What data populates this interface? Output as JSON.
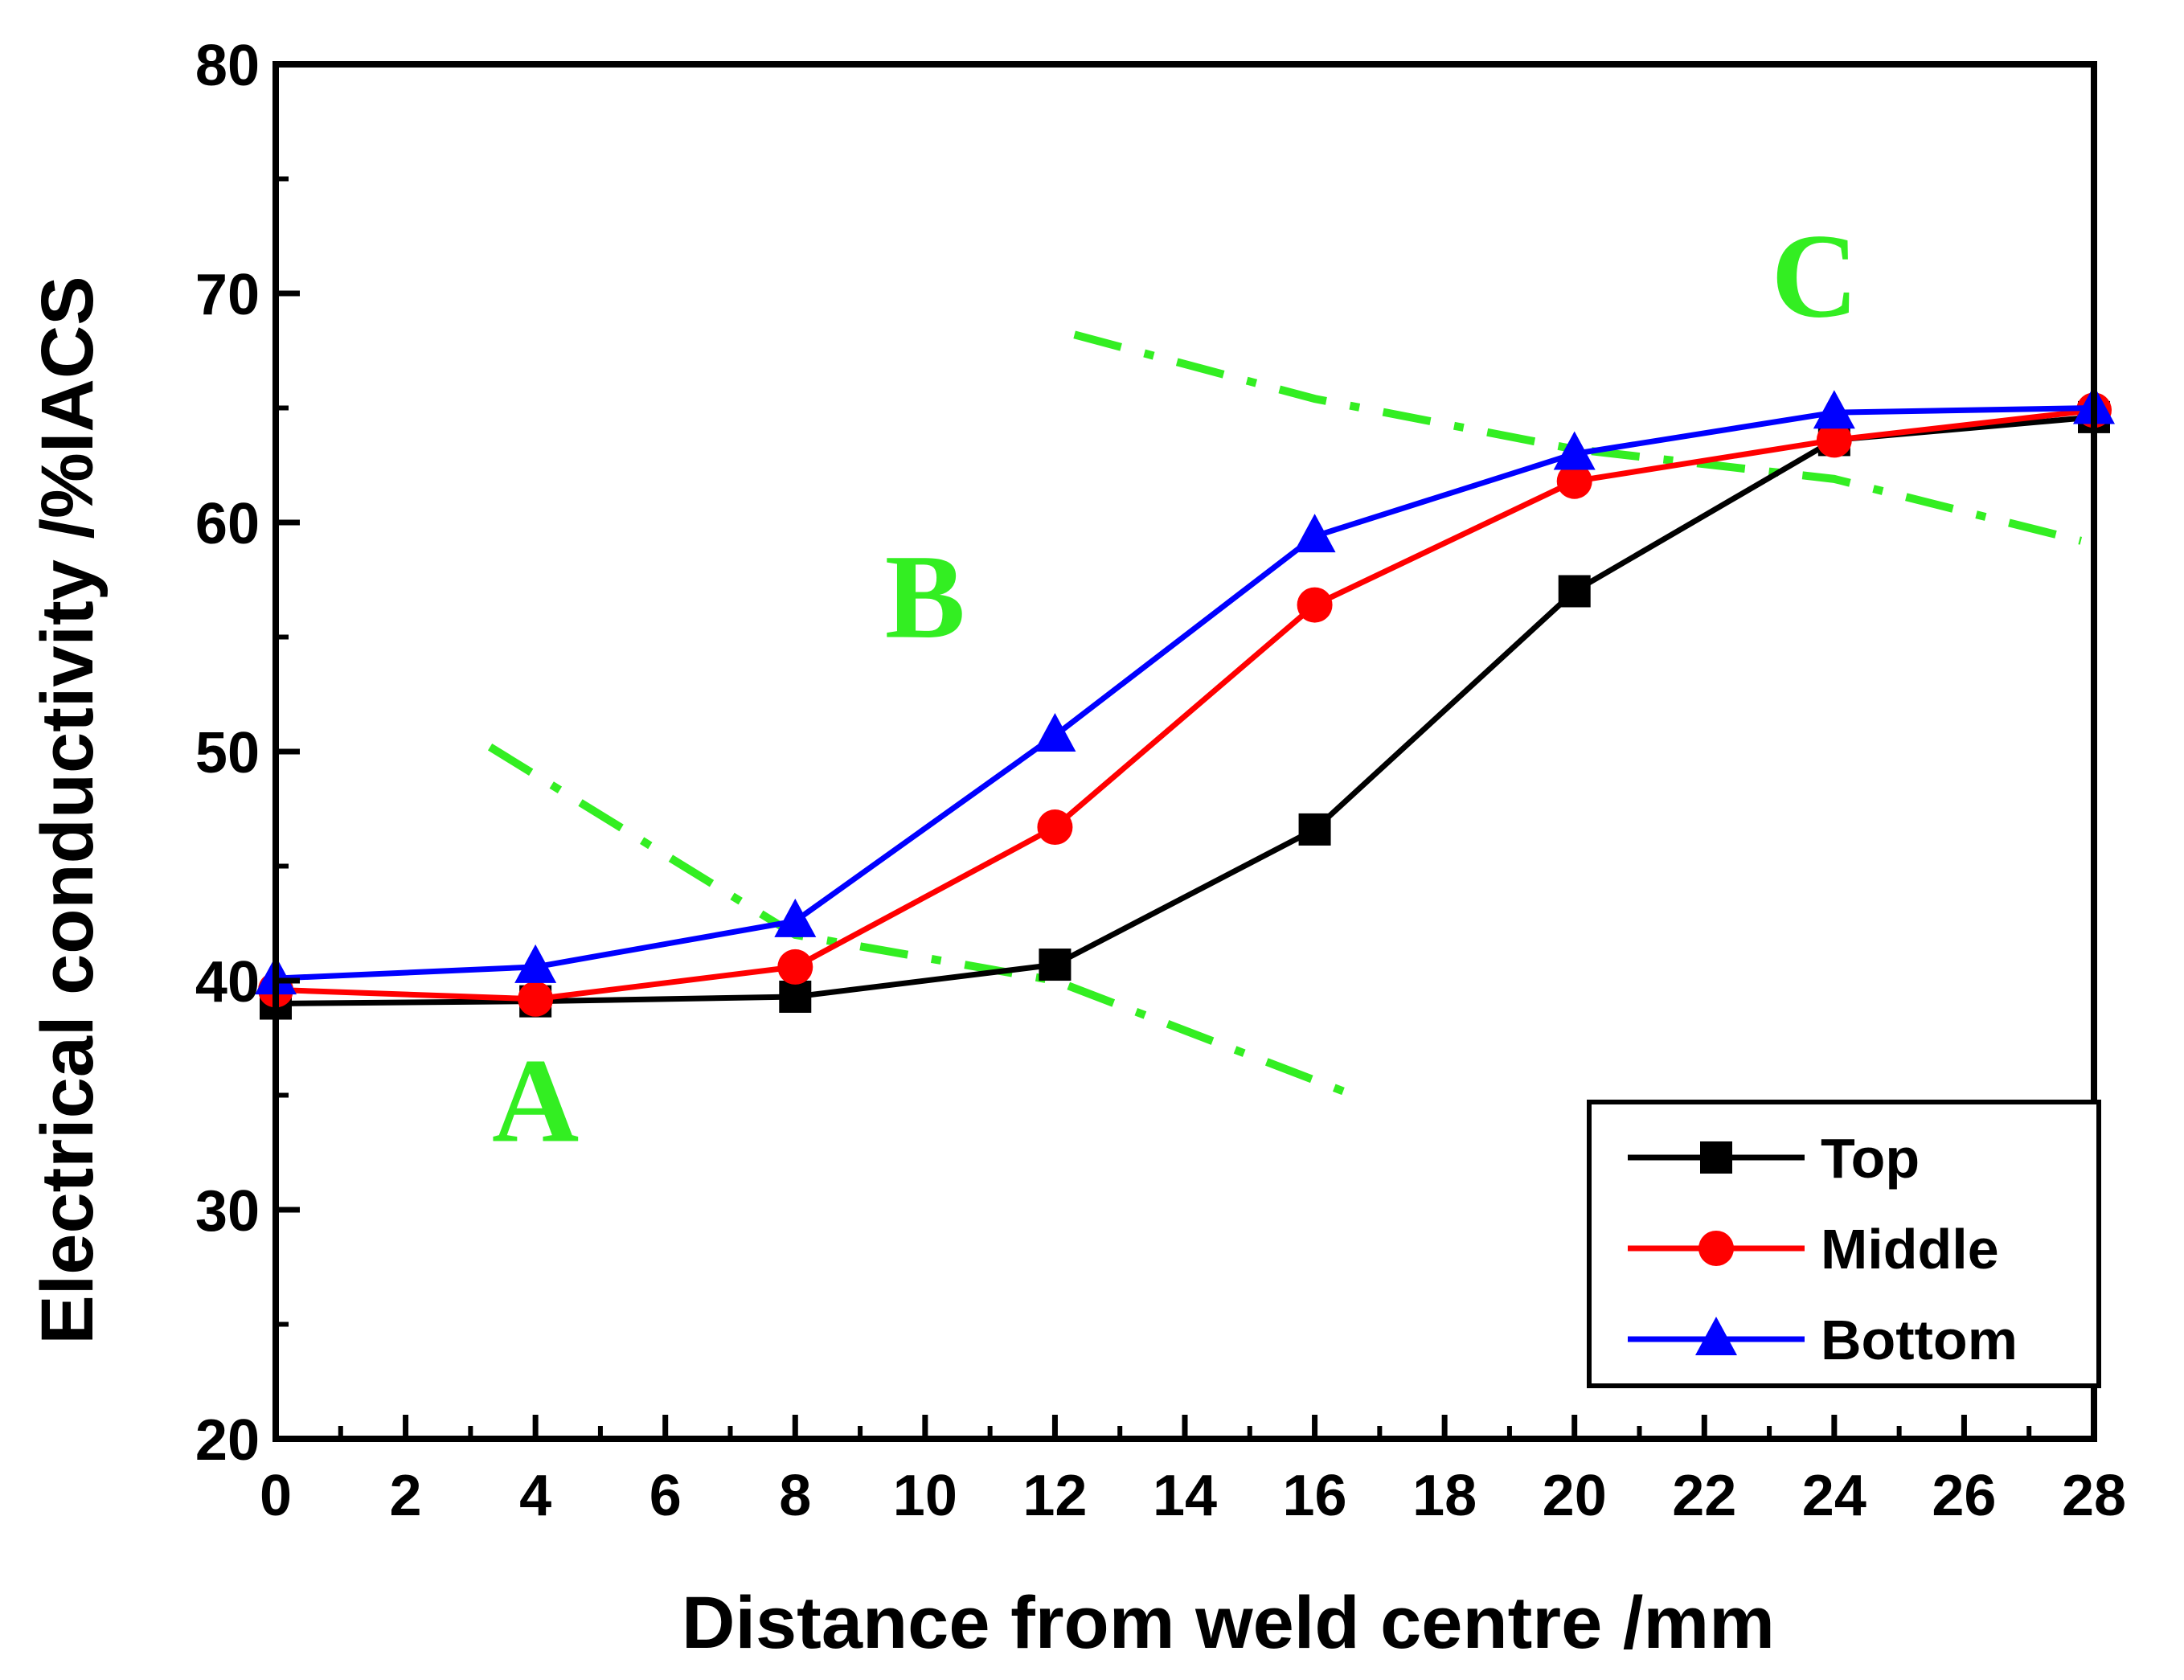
{
  "chart_data": {
    "type": "line",
    "xlabel": "Distance from weld centre /mm",
    "ylabel": "Electrical conductivity /%IACS",
    "xlim": [
      0,
      28
    ],
    "ylim": [
      20,
      80
    ],
    "x_ticks": [
      "0",
      "2",
      "4",
      "6",
      "8",
      "10",
      "12",
      "14",
      "16",
      "18",
      "20",
      "22",
      "24",
      "26",
      "28"
    ],
    "y_ticks": [
      "20",
      "30",
      "40",
      "50",
      "60",
      "70",
      "80"
    ],
    "x": [
      0,
      4,
      8,
      12,
      16,
      20,
      24,
      28
    ],
    "series": [
      {
        "name": "Top",
        "color": "#000000",
        "marker": "square",
        "values": [
          39.0,
          39.1,
          39.3,
          40.7,
          46.6,
          57.0,
          63.6,
          64.6
        ]
      },
      {
        "name": "Middle",
        "color": "#ff0000",
        "marker": "circle",
        "values": [
          39.6,
          39.2,
          40.6,
          46.7,
          56.4,
          61.8,
          63.6,
          64.9
        ]
      },
      {
        "name": "Bottom",
        "color": "#0000ff",
        "marker": "triangle",
        "values": [
          40.1,
          40.6,
          42.6,
          50.7,
          59.4,
          63.0,
          64.8,
          65.0
        ]
      }
    ],
    "legend": {
      "position": "bottom-right",
      "entries": [
        "Top",
        "Middle",
        "Bottom"
      ]
    },
    "annotations": {
      "region_labels": [
        {
          "text": "A",
          "x": 4,
          "y": 33,
          "color": "#33ee22"
        },
        {
          "text": "B",
          "x": 10,
          "y": 55,
          "color": "#33ee22"
        },
        {
          "text": "C",
          "x": 23.7,
          "y": 69,
          "color": "#33ee22"
        }
      ],
      "boundary_lines": [
        {
          "color": "#33ee22",
          "style": "dash-dot",
          "points": [
            [
              3.3,
              50.2
            ],
            [
              8,
              42
            ],
            [
              12,
              40
            ],
            [
              16.6,
              35
            ]
          ]
        },
        {
          "color": "#33ee22",
          "style": "dash-dot",
          "points": [
            [
              12.3,
              68.2
            ],
            [
              16,
              65.4
            ],
            [
              20,
              63.2
            ],
            [
              24,
              61.9
            ],
            [
              27.8,
              59.2
            ]
          ]
        }
      ]
    },
    "grid": false
  }
}
